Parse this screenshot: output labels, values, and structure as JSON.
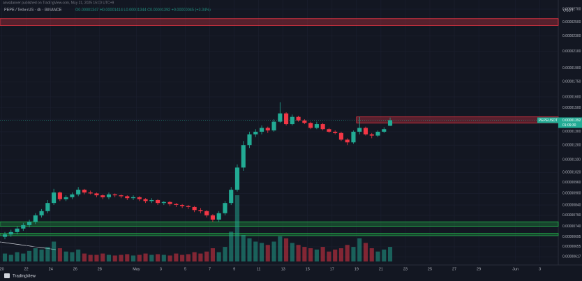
{
  "header": {
    "published": "anvsdanver published on TradingView.com, May 21, 2025 15:00 UTC+9",
    "footer": "TradingView"
  },
  "chart_data": {
    "type": "candlestick",
    "title": "PEPE / TetherUS · 4h · BINANCE",
    "ohlc_text": "O0.00001347 H0.00001414 L0.00001344 C0.00001392 +0.00000045 (+3.34%)",
    "currency": "USDT",
    "symbol": "PEPEUSDT",
    "last_price": 1.392e-05,
    "last_price_label": "0.00001392",
    "countdown": "01:09:30",
    "up_color": "#22ab94",
    "down_color": "#f23645",
    "log_scale": true,
    "grid": true,
    "xlim": [
      -0.3,
      91
    ],
    "xticks": [
      {
        "value": 0,
        "label": "20"
      },
      {
        "value": 4,
        "label": "22"
      },
      {
        "value": 8,
        "label": "24"
      },
      {
        "value": 12,
        "label": "26"
      },
      {
        "value": 16,
        "label": "28"
      },
      {
        "value": 22,
        "label": "May"
      },
      {
        "value": 26,
        "label": "3"
      },
      {
        "value": 30,
        "label": "5"
      },
      {
        "value": 34,
        "label": "7"
      },
      {
        "value": 38,
        "label": "9"
      },
      {
        "value": 42,
        "label": "11"
      },
      {
        "value": 46,
        "label": "13"
      },
      {
        "value": 50,
        "label": "15"
      },
      {
        "value": 54,
        "label": "17"
      },
      {
        "value": 58,
        "label": "19"
      },
      {
        "value": 62,
        "label": "21"
      },
      {
        "value": 66,
        "label": "23"
      },
      {
        "value": 70,
        "label": "25"
      },
      {
        "value": 74,
        "label": "27"
      },
      {
        "value": 78,
        "label": "29"
      },
      {
        "value": 84,
        "label": "Jun"
      },
      {
        "value": 88,
        "label": "3"
      }
    ],
    "ylim": [
      6e-06,
      2.85e-05
    ],
    "yticks": [
      {
        "value": 2.7e-05,
        "label": "0.00002700"
      },
      {
        "value": 2.5e-05,
        "label": "0.00002500"
      },
      {
        "value": 2.3e-05,
        "label": "0.00002300"
      },
      {
        "value": 2.1e-05,
        "label": "0.00002100"
      },
      {
        "value": 1.9e-05,
        "label": "0.00001900"
      },
      {
        "value": 1.75e-05,
        "label": "0.00001750"
      },
      {
        "value": 1.6e-05,
        "label": "0.00001600"
      },
      {
        "value": 1.5e-05,
        "label": "0.00001500"
      },
      {
        "value": 1.4e-05,
        "label": "0.00001400"
      },
      {
        "value": 1.3e-05,
        "label": "0.00001300"
      },
      {
        "value": 1.2e-05,
        "label": "0.00001200"
      },
      {
        "value": 1.1e-05,
        "label": "0.00001100"
      },
      {
        "value": 1.02e-05,
        "label": "0.00001020"
      },
      {
        "value": 9.6e-06,
        "label": "0.00000960"
      },
      {
        "value": 9e-06,
        "label": "0.00000900"
      },
      {
        "value": 8.4e-06,
        "label": "0.00000840"
      },
      {
        "value": 7.9e-06,
        "label": "0.00000790"
      },
      {
        "value": 7.4e-06,
        "label": "0.00000740"
      },
      {
        "value": 6.95e-06,
        "label": "0.00000695"
      },
      {
        "value": 6.55e-06,
        "label": "0.00000655"
      },
      {
        "value": 6.17e-06,
        "label": "0.00000617"
      }
    ],
    "open": [
      6.95e-06,
      7.05e-06,
      7.15e-06,
      7.3e-06,
      7.45e-06,
      7.6e-06,
      7.9e-06,
      8.1e-06,
      8.5e-06,
      9.05e-06,
      8.7e-06,
      8.8e-06,
      8.95e-06,
      9.2e-06,
      9.05e-06,
      9e-06,
      8.9e-06,
      8.8e-06,
      8.95e-06,
      8.9e-06,
      8.85e-06,
      8.75e-06,
      8.8e-06,
      8.7e-06,
      8.6e-06,
      8.65e-06,
      8.5e-06,
      8.55e-06,
      8.45e-06,
      8.4e-06,
      8.35e-06,
      8.3e-06,
      8.15e-06,
      8.1e-06,
      7.9e-06,
      7.7e-06,
      8e-06,
      8.5e-06,
      9.2e-06,
      1.05e-05,
      1.2e-05,
      1.28e-05,
      1.3e-05,
      1.33e-05,
      1.31e-05,
      1.38e-05,
      1.45e-05,
      1.36e-05,
      1.42e-05,
      1.39e-05,
      1.37e-05,
      1.33e-05,
      1.36e-05,
      1.32e-05,
      1.3e-05,
      1.29e-05,
      1.24e-05,
      1.22e-05,
      1.3e-05,
      1.33e-05,
      1.28e-05,
      1.27e-05,
      1.3e-05,
      1.347e-05
    ],
    "high": [
      7.15e-06,
      7.25e-06,
      7.4e-06,
      7.55e-06,
      7.7e-06,
      8e-06,
      8.2e-06,
      8.65e-06,
      9.25e-06,
      9.1e-06,
      8.9e-06,
      9.05e-06,
      9.35e-06,
      9.25e-06,
      9.15e-06,
      9.05e-06,
      8.95e-06,
      9.05e-06,
      9e-06,
      8.95e-06,
      8.9e-06,
      8.9e-06,
      8.85e-06,
      8.75e-06,
      8.75e-06,
      8.7e-06,
      8.6e-06,
      8.6e-06,
      8.5e-06,
      8.45e-06,
      8.4e-06,
      8.35e-06,
      8.25e-06,
      8.15e-06,
      7.95e-06,
      8.1e-06,
      8.6e-06,
      9.35e-06,
      1.07e-05,
      1.23e-05,
      1.3e-05,
      1.32e-05,
      1.35e-05,
      1.34e-05,
      1.4e-05,
      1.55e-05,
      1.46e-05,
      1.44e-05,
      1.43e-05,
      1.4e-05,
      1.38e-05,
      1.38e-05,
      1.37e-05,
      1.33e-05,
      1.31e-05,
      1.3e-05,
      1.25e-05,
      1.31e-05,
      1.42e-05,
      1.34e-05,
      1.29e-05,
      1.31e-05,
      1.335e-05,
      1.414e-05
    ],
    "low": [
      6.85e-06,
      6.95e-06,
      7.05e-06,
      7.2e-06,
      7.35e-06,
      7.5e-06,
      7.8e-06,
      8e-06,
      8.4e-06,
      8.6e-06,
      8.6e-06,
      8.7e-06,
      8.85e-06,
      8.95e-06,
      8.95e-06,
      8.8e-06,
      8.7e-06,
      8.7e-06,
      8.8e-06,
      8.75e-06,
      8.65e-06,
      8.65e-06,
      8.6e-06,
      8.5e-06,
      8.5e-06,
      8.4e-06,
      8.4e-06,
      8.35e-06,
      8.3e-06,
      8.25e-06,
      8.2e-06,
      8.05e-06,
      8e-06,
      7.8e-06,
      7.6e-06,
      7.6e-06,
      7.9e-06,
      8.4e-06,
      9.1e-06,
      1.03e-05,
      1.18e-05,
      1.26e-05,
      1.28e-05,
      1.29e-05,
      1.3e-05,
      1.37e-05,
      1.35e-05,
      1.35e-05,
      1.38e-05,
      1.36e-05,
      1.32e-05,
      1.32e-05,
      1.31e-05,
      1.29e-05,
      1.28e-05,
      1.23e-05,
      1.2e-05,
      1.21e-05,
      1.28e-05,
      1.27e-05,
      1.25e-05,
      1.26e-05,
      1.29e-05,
      1.344e-05
    ],
    "close": [
      7.05e-06,
      7.15e-06,
      7.3e-06,
      7.45e-06,
      7.6e-06,
      7.9e-06,
      8.1e-06,
      8.5e-06,
      9.05e-06,
      8.7e-06,
      8.8e-06,
      8.95e-06,
      9.2e-06,
      9.05e-06,
      9e-06,
      8.9e-06,
      8.8e-06,
      8.95e-06,
      8.9e-06,
      8.85e-06,
      8.75e-06,
      8.8e-06,
      8.7e-06,
      8.6e-06,
      8.65e-06,
      8.5e-06,
      8.55e-06,
      8.45e-06,
      8.4e-06,
      8.35e-06,
      8.3e-06,
      8.15e-06,
      8.1e-06,
      7.9e-06,
      7.7e-06,
      8e-06,
      8.5e-06,
      9.2e-06,
      1.05e-05,
      1.2e-05,
      1.28e-05,
      1.3e-05,
      1.33e-05,
      1.31e-05,
      1.38e-05,
      1.45e-05,
      1.36e-05,
      1.42e-05,
      1.39e-05,
      1.37e-05,
      1.33e-05,
      1.36e-05,
      1.32e-05,
      1.3e-05,
      1.29e-05,
      1.24e-05,
      1.22e-05,
      1.3e-05,
      1.33e-05,
      1.28e-05,
      1.27e-05,
      1.3e-05,
      1.32e-05,
      1.392e-05
    ],
    "volume": [
      12,
      10,
      14,
      12,
      16,
      20,
      18,
      22,
      30,
      20,
      15,
      14,
      18,
      12,
      10,
      10,
      12,
      10,
      9,
      10,
      11,
      9,
      10,
      12,
      10,
      11,
      10,
      9,
      12,
      10,
      11,
      14,
      12,
      15,
      20,
      14,
      22,
      45,
      100,
      40,
      35,
      30,
      28,
      25,
      30,
      38,
      35,
      28,
      25,
      22,
      20,
      18,
      22,
      15,
      18,
      20,
      25,
      22,
      35,
      28,
      20,
      15,
      18,
      22
    ],
    "volume_max": 100,
    "zones": [
      {
        "low": 2.45e-05,
        "high": 2.55e-05,
        "color": "#f23645",
        "start": -0.3
      },
      {
        "low": 1.37e-05,
        "high": 1.42e-05,
        "color": "#f23645",
        "start": 58
      },
      {
        "low": 7.4e-06,
        "high": 7.6e-06,
        "color": "#22ab4a",
        "start": -0.3
      },
      {
        "low": 7e-06,
        "high": 7.1e-06,
        "color": "#22ab4a",
        "start": -0.3
      }
    ]
  }
}
